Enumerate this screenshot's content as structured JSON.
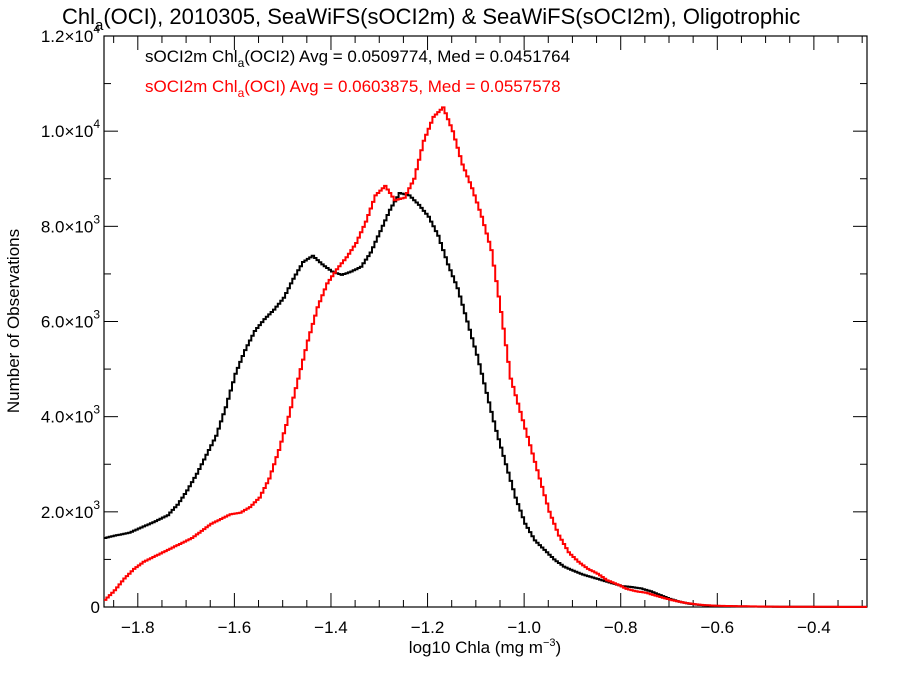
{
  "chart_data": {
    "type": "line",
    "title": {
      "pre": "Chl",
      "sub": "a",
      "post": "(OCI), 2010305, SeaWiFS(sOCI2m) & SeaWiFS(sOCI2m), Oligotrophic"
    },
    "xlabel": {
      "pre": "log10 Chla (mg m",
      "sup": "−3",
      "post": ")"
    },
    "ylabel": "Number of Observations",
    "xlim": [
      -1.87,
      -0.29
    ],
    "ylim": [
      0,
      12000
    ],
    "xticks": [
      {
        "value": -1.8,
        "label": "−1.8"
      },
      {
        "value": -1.6,
        "label": "−1.6"
      },
      {
        "value": -1.4,
        "label": "−1.4"
      },
      {
        "value": -1.2,
        "label": "−1.2"
      },
      {
        "value": -1.0,
        "label": "−1.0"
      },
      {
        "value": -0.8,
        "label": "−0.8"
      },
      {
        "value": -0.6,
        "label": "−0.6"
      },
      {
        "value": -0.4,
        "label": "−0.4"
      }
    ],
    "yticks": [
      {
        "value": 0,
        "mant": "0",
        "exp": ""
      },
      {
        "value": 2000,
        "mant": "2.0×10",
        "exp": "3"
      },
      {
        "value": 4000,
        "mant": "4.0×10",
        "exp": "3"
      },
      {
        "value": 6000,
        "mant": "6.0×10",
        "exp": "3"
      },
      {
        "value": 8000,
        "mant": "8.0×10",
        "exp": "3"
      },
      {
        "value": 10000,
        "mant": "1.0×10",
        "exp": "4"
      },
      {
        "value": 12000,
        "mant": "1.2×10",
        "exp": "4"
      }
    ],
    "grid": false,
    "legend_position": "top-left",
    "series": [
      {
        "color": "#000000",
        "label": {
          "pre": "sOCI2m Chl",
          "sub": "a",
          "post": "(OCI2) Avg = 0.0509774, Med = 0.0451764"
        },
        "points": [
          [
            -1.87,
            1450
          ],
          [
            -1.85,
            1500
          ],
          [
            -1.82,
            1560
          ],
          [
            -1.8,
            1650
          ],
          [
            -1.77,
            1780
          ],
          [
            -1.74,
            1930
          ],
          [
            -1.72,
            2150
          ],
          [
            -1.7,
            2450
          ],
          [
            -1.68,
            2800
          ],
          [
            -1.66,
            3200
          ],
          [
            -1.64,
            3600
          ],
          [
            -1.62,
            4200
          ],
          [
            -1.6,
            4900
          ],
          [
            -1.58,
            5400
          ],
          [
            -1.56,
            5800
          ],
          [
            -1.54,
            6050
          ],
          [
            -1.52,
            6250
          ],
          [
            -1.5,
            6500
          ],
          [
            -1.48,
            6900
          ],
          [
            -1.46,
            7250
          ],
          [
            -1.44,
            7380
          ],
          [
            -1.42,
            7200
          ],
          [
            -1.4,
            7050
          ],
          [
            -1.38,
            6980
          ],
          [
            -1.36,
            7050
          ],
          [
            -1.34,
            7150
          ],
          [
            -1.32,
            7450
          ],
          [
            -1.3,
            7900
          ],
          [
            -1.28,
            8350
          ],
          [
            -1.26,
            8700
          ],
          [
            -1.24,
            8650
          ],
          [
            -1.22,
            8450
          ],
          [
            -1.2,
            8200
          ],
          [
            -1.18,
            7800
          ],
          [
            -1.16,
            7200
          ],
          [
            -1.14,
            6700
          ],
          [
            -1.12,
            6000
          ],
          [
            -1.1,
            5300
          ],
          [
            -1.08,
            4500
          ],
          [
            -1.06,
            3700
          ],
          [
            -1.04,
            3000
          ],
          [
            -1.02,
            2300
          ],
          [
            -1.0,
            1750
          ],
          [
            -0.98,
            1400
          ],
          [
            -0.96,
            1200
          ],
          [
            -0.94,
            1000
          ],
          [
            -0.92,
            850
          ],
          [
            -0.9,
            760
          ],
          [
            -0.88,
            680
          ],
          [
            -0.86,
            620
          ],
          [
            -0.84,
            560
          ],
          [
            -0.82,
            500
          ],
          [
            -0.8,
            440
          ],
          [
            -0.78,
            420
          ],
          [
            -0.76,
            390
          ],
          [
            -0.74,
            330
          ],
          [
            -0.72,
            250
          ],
          [
            -0.7,
            170
          ],
          [
            -0.68,
            110
          ],
          [
            -0.66,
            70
          ],
          [
            -0.64,
            45
          ],
          [
            -0.62,
            30
          ],
          [
            -0.6,
            20
          ],
          [
            -0.55,
            12
          ],
          [
            -0.5,
            8
          ],
          [
            -0.45,
            5
          ],
          [
            -0.4,
            3
          ],
          [
            -0.29,
            2
          ]
        ]
      },
      {
        "color": "#ff0000",
        "label": {
          "pre": "sOCI2m Chl",
          "sub": "a",
          "post": "(OCI) Avg = 0.0603875, Med = 0.0557578"
        },
        "points": [
          [
            -1.87,
            150
          ],
          [
            -1.85,
            350
          ],
          [
            -1.83,
            600
          ],
          [
            -1.81,
            800
          ],
          [
            -1.79,
            950
          ],
          [
            -1.77,
            1050
          ],
          [
            -1.75,
            1150
          ],
          [
            -1.73,
            1250
          ],
          [
            -1.71,
            1350
          ],
          [
            -1.69,
            1450
          ],
          [
            -1.67,
            1600
          ],
          [
            -1.65,
            1750
          ],
          [
            -1.63,
            1850
          ],
          [
            -1.61,
            1950
          ],
          [
            -1.59,
            1980
          ],
          [
            -1.57,
            2100
          ],
          [
            -1.55,
            2300
          ],
          [
            -1.53,
            2700
          ],
          [
            -1.51,
            3300
          ],
          [
            -1.49,
            4000
          ],
          [
            -1.47,
            4800
          ],
          [
            -1.45,
            5600
          ],
          [
            -1.43,
            6300
          ],
          [
            -1.41,
            6800
          ],
          [
            -1.39,
            7100
          ],
          [
            -1.37,
            7350
          ],
          [
            -1.35,
            7650
          ],
          [
            -1.33,
            8100
          ],
          [
            -1.31,
            8650
          ],
          [
            -1.29,
            8850
          ],
          [
            -1.27,
            8550
          ],
          [
            -1.25,
            8600
          ],
          [
            -1.23,
            9000
          ],
          [
            -1.21,
            9800
          ],
          [
            -1.19,
            10300
          ],
          [
            -1.17,
            10500
          ],
          [
            -1.15,
            10000
          ],
          [
            -1.13,
            9300
          ],
          [
            -1.11,
            8800
          ],
          [
            -1.09,
            8200
          ],
          [
            -1.07,
            7500
          ],
          [
            -1.05,
            6200
          ],
          [
            -1.03,
            4800
          ],
          [
            -1.01,
            4100
          ],
          [
            -0.99,
            3400
          ],
          [
            -0.97,
            2700
          ],
          [
            -0.95,
            2000
          ],
          [
            -0.93,
            1500
          ],
          [
            -0.91,
            1150
          ],
          [
            -0.89,
            950
          ],
          [
            -0.87,
            800
          ],
          [
            -0.85,
            700
          ],
          [
            -0.83,
            560
          ],
          [
            -0.81,
            480
          ],
          [
            -0.79,
            380
          ],
          [
            -0.77,
            330
          ],
          [
            -0.75,
            300
          ],
          [
            -0.73,
            240
          ],
          [
            -0.71,
            180
          ],
          [
            -0.69,
            130
          ],
          [
            -0.67,
            90
          ],
          [
            -0.65,
            60
          ],
          [
            -0.63,
            40
          ],
          [
            -0.6,
            25
          ],
          [
            -0.55,
            15
          ],
          [
            -0.5,
            9
          ],
          [
            -0.45,
            5
          ],
          [
            -0.29,
            2
          ]
        ]
      }
    ]
  }
}
